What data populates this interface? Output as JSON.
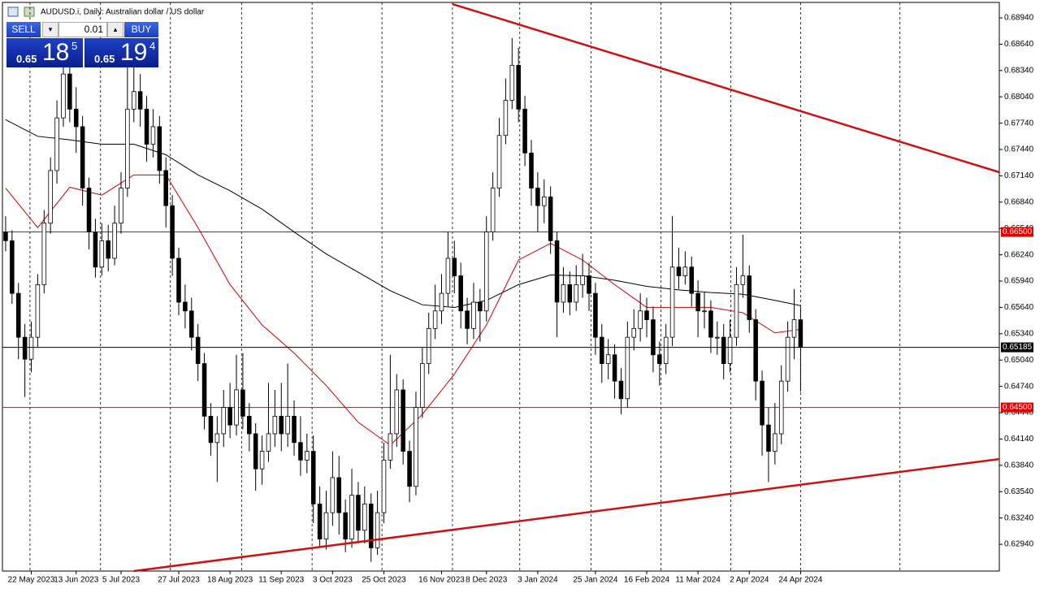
{
  "header": {
    "title": "AUDUSD.i, Daily:  Australian dollar / US dollar"
  },
  "trade_panel": {
    "sell": "SELL",
    "buy": "BUY",
    "lot": "0.01",
    "bid": {
      "prefix": "0.65",
      "pips": "18",
      "point": "5"
    },
    "ask": {
      "prefix": "0.65",
      "pips": "19",
      "point": "4"
    }
  },
  "chart_data": {
    "type": "candlestick",
    "xlim": [
      -0.5,
      155
    ],
    "ylim": [
      0.62635,
      0.69116
    ],
    "up_color": "#ffffff",
    "down_color": "#000000",
    "xticks": [
      {
        "value": 4,
        "label": "22 May 2023"
      },
      {
        "value": 11,
        "label": "13 Jun 2023"
      },
      {
        "value": 18,
        "label": "5 Jul 2023"
      },
      {
        "value": 27,
        "label": "27 Jul 2023"
      },
      {
        "value": 35,
        "label": "18 Aug 2023"
      },
      {
        "value": 43,
        "label": "11 Sep 2023"
      },
      {
        "value": 51,
        "label": "3 Oct 2023"
      },
      {
        "value": 59,
        "label": "25 Oct 2023"
      },
      {
        "value": 68,
        "label": "16 Nov 2023"
      },
      {
        "value": 75,
        "label": "8 Dec 2023"
      },
      {
        "value": 83,
        "label": "3 Jan 2024"
      },
      {
        "value": 92,
        "label": "25 Jan 2024"
      },
      {
        "value": 100,
        "label": "16 Feb 2024"
      },
      {
        "value": 108,
        "label": "11 Mar 2024"
      },
      {
        "value": 116,
        "label": "2 Apr 2024"
      },
      {
        "value": 124,
        "label": "24 Apr 2024"
      }
    ],
    "xgrid": [
      3.8,
      14.8,
      25.7,
      36.8,
      47.8,
      58.7,
      69.7,
      80.2,
      91.3,
      102.2,
      113.1,
      124.0,
      139.5
    ],
    "yticks": [
      {
        "value": 0.6894,
        "label": "0.68940"
      },
      {
        "value": 0.6864,
        "label": "0.68640"
      },
      {
        "value": 0.6834,
        "label": "0.68340"
      },
      {
        "value": 0.6804,
        "label": "0.68040"
      },
      {
        "value": 0.6774,
        "label": "0.67740"
      },
      {
        "value": 0.6744,
        "label": "0.67440"
      },
      {
        "value": 0.6714,
        "label": "0.67140"
      },
      {
        "value": 0.6684,
        "label": "0.66840"
      },
      {
        "value": 0.6654,
        "label": "0.66540"
      },
      {
        "value": 0.6624,
        "label": "0.66240"
      },
      {
        "value": 0.6594,
        "label": "0.65940"
      },
      {
        "value": 0.6564,
        "label": "0.65640"
      },
      {
        "value": 0.6534,
        "label": "0.65340"
      },
      {
        "value": 0.6504,
        "label": "0.65040"
      },
      {
        "value": 0.6474,
        "label": "0.64740"
      },
      {
        "value": 0.6444,
        "label": "0.64440"
      },
      {
        "value": 0.6414,
        "label": "0.64140"
      },
      {
        "value": 0.6384,
        "label": "0.63840"
      },
      {
        "value": 0.6354,
        "label": "0.63540"
      },
      {
        "value": 0.6324,
        "label": "0.63240"
      },
      {
        "value": 0.6294,
        "label": "0.62940"
      }
    ],
    "candles": {
      "open": [
        0.665,
        0.664,
        0.658,
        0.653,
        0.6505,
        0.653,
        0.659,
        0.666,
        0.672,
        0.678,
        0.683,
        0.679,
        0.677,
        0.67,
        0.665,
        0.661,
        0.664,
        0.662,
        0.666,
        0.67,
        0.679,
        0.681,
        0.679,
        0.675,
        0.677,
        0.672,
        0.668,
        0.662,
        0.657,
        0.656,
        0.653,
        0.65,
        0.644,
        0.641,
        0.642,
        0.645,
        0.643,
        0.647,
        0.644,
        0.642,
        0.638,
        0.64,
        0.642,
        0.644,
        0.642,
        0.644,
        0.641,
        0.639,
        0.64,
        0.634,
        0.63,
        0.633,
        0.637,
        0.633,
        0.63,
        0.635,
        0.631,
        0.634,
        0.629,
        0.633,
        0.639,
        0.642,
        0.647,
        0.64,
        0.636,
        0.645,
        0.65,
        0.654,
        0.656,
        0.658,
        0.662,
        0.66,
        0.656,
        0.654,
        0.657,
        0.656,
        0.665,
        0.67,
        0.676,
        0.68,
        0.684,
        0.679,
        0.674,
        0.67,
        0.668,
        0.669,
        0.664,
        0.657,
        0.659,
        0.657,
        0.659,
        0.66,
        0.658,
        0.653,
        0.65,
        0.651,
        0.648,
        0.646,
        0.653,
        0.654,
        0.656,
        0.655,
        0.651,
        0.65,
        0.653,
        0.661,
        0.66,
        0.661,
        0.658,
        0.656,
        0.656,
        0.653,
        0.653,
        0.65,
        0.653,
        0.659,
        0.66,
        0.655,
        0.648,
        0.643,
        0.64,
        0.642,
        0.648,
        0.653,
        0.655
      ],
      "high": [
        0.6668,
        0.6652,
        0.6592,
        0.6545,
        0.6548,
        0.6602,
        0.6675,
        0.6735,
        0.68,
        0.6852,
        0.685,
        0.6815,
        0.6782,
        0.6712,
        0.6665,
        0.666,
        0.6658,
        0.668,
        0.6718,
        0.6852,
        0.685,
        0.683,
        0.6805,
        0.679,
        0.6782,
        0.6735,
        0.6692,
        0.6632,
        0.659,
        0.6575,
        0.6545,
        0.6512,
        0.6455,
        0.644,
        0.647,
        0.6478,
        0.651,
        0.6512,
        0.6455,
        0.6432,
        0.6418,
        0.6478,
        0.647,
        0.6478,
        0.65,
        0.6458,
        0.644,
        0.642,
        0.6418,
        0.636,
        0.6355,
        0.64,
        0.6395,
        0.6345,
        0.638,
        0.6365,
        0.636,
        0.6352,
        0.6355,
        0.641,
        0.651,
        0.6488,
        0.6482,
        0.6412,
        0.6468,
        0.6518,
        0.6558,
        0.659,
        0.6602,
        0.665,
        0.664,
        0.6615,
        0.6575,
        0.6592,
        0.6585,
        0.6668,
        0.6718,
        0.678,
        0.6825,
        0.6871,
        0.686,
        0.6805,
        0.6755,
        0.6718,
        0.671,
        0.6702,
        0.665,
        0.661,
        0.6605,
        0.6612,
        0.6625,
        0.6615,
        0.6592,
        0.6545,
        0.6528,
        0.6522,
        0.6495,
        0.6548,
        0.6562,
        0.658,
        0.6575,
        0.6565,
        0.6525,
        0.6545,
        0.6668,
        0.6632,
        0.6628,
        0.6622,
        0.6595,
        0.6582,
        0.6572,
        0.6548,
        0.6545,
        0.655,
        0.661,
        0.6647,
        0.6612,
        0.6562,
        0.6492,
        0.645,
        0.6455,
        0.6498,
        0.6548,
        0.6585,
        0.6565
      ],
      "low": [
        0.6628,
        0.6568,
        0.6505,
        0.6462,
        0.649,
        0.6518,
        0.658,
        0.6648,
        0.6705,
        0.677,
        0.6775,
        0.674,
        0.668,
        0.663,
        0.6598,
        0.66,
        0.6605,
        0.6612,
        0.6648,
        0.669,
        0.6775,
        0.677,
        0.673,
        0.6735,
        0.6705,
        0.6655,
        0.66,
        0.6555,
        0.654,
        0.6515,
        0.648,
        0.6425,
        0.6395,
        0.6365,
        0.6405,
        0.6415,
        0.6418,
        0.6425,
        0.64,
        0.6355,
        0.6362,
        0.6388,
        0.6405,
        0.64,
        0.6405,
        0.6395,
        0.6372,
        0.6375,
        0.6318,
        0.629,
        0.6288,
        0.6315,
        0.6305,
        0.6285,
        0.629,
        0.6295,
        0.6295,
        0.6274,
        0.6282,
        0.6318,
        0.638,
        0.6405,
        0.6385,
        0.6342,
        0.635,
        0.6438,
        0.6488,
        0.6528,
        0.6545,
        0.6565,
        0.658,
        0.654,
        0.6522,
        0.6528,
        0.6525,
        0.6548,
        0.664,
        0.669,
        0.675,
        0.679,
        0.6775,
        0.6725,
        0.668,
        0.665,
        0.666,
        0.6625,
        0.653,
        0.6558,
        0.6555,
        0.656,
        0.6575,
        0.656,
        0.651,
        0.6478,
        0.6482,
        0.646,
        0.6442,
        0.645,
        0.6515,
        0.6525,
        0.653,
        0.649,
        0.6475,
        0.6488,
        0.652,
        0.6585,
        0.659,
        0.6565,
        0.653,
        0.654,
        0.6512,
        0.651,
        0.6482,
        0.649,
        0.652,
        0.6575,
        0.6535,
        0.6458,
        0.6395,
        0.6365,
        0.6385,
        0.6408,
        0.6468,
        0.6505,
        0.6468
      ],
      "close": [
        0.664,
        0.658,
        0.653,
        0.6505,
        0.653,
        0.659,
        0.666,
        0.672,
        0.678,
        0.683,
        0.679,
        0.677,
        0.67,
        0.665,
        0.661,
        0.664,
        0.662,
        0.666,
        0.67,
        0.679,
        0.681,
        0.679,
        0.675,
        0.677,
        0.672,
        0.668,
        0.662,
        0.657,
        0.656,
        0.653,
        0.65,
        0.644,
        0.641,
        0.642,
        0.645,
        0.643,
        0.647,
        0.644,
        0.642,
        0.638,
        0.64,
        0.642,
        0.644,
        0.642,
        0.644,
        0.641,
        0.639,
        0.64,
        0.634,
        0.63,
        0.633,
        0.637,
        0.633,
        0.63,
        0.635,
        0.631,
        0.634,
        0.629,
        0.633,
        0.639,
        0.642,
        0.647,
        0.64,
        0.636,
        0.645,
        0.65,
        0.654,
        0.656,
        0.658,
        0.662,
        0.66,
        0.656,
        0.654,
        0.657,
        0.656,
        0.665,
        0.67,
        0.676,
        0.68,
        0.684,
        0.679,
        0.674,
        0.67,
        0.668,
        0.669,
        0.664,
        0.657,
        0.659,
        0.657,
        0.659,
        0.66,
        0.658,
        0.653,
        0.65,
        0.651,
        0.648,
        0.646,
        0.653,
        0.654,
        0.656,
        0.655,
        0.651,
        0.65,
        0.653,
        0.661,
        0.66,
        0.661,
        0.658,
        0.656,
        0.656,
        0.653,
        0.653,
        0.65,
        0.653,
        0.659,
        0.66,
        0.655,
        0.648,
        0.643,
        0.64,
        0.642,
        0.648,
        0.653,
        0.655,
        0.65185
      ]
    },
    "series": [
      {
        "color": "#000000",
        "x": [
          0,
          5,
          10,
          15,
          20,
          25,
          30,
          35,
          40,
          45,
          50,
          55,
          60,
          65,
          70,
          75,
          80,
          85,
          90,
          95,
          100,
          105,
          110,
          115,
          120,
          124
        ],
        "values": [
          0.6778,
          0.6759,
          0.6755,
          0.675,
          0.675,
          0.6738,
          0.6715,
          0.6697,
          0.6676,
          0.665,
          0.6625,
          0.6604,
          0.6583,
          0.6567,
          0.6564,
          0.6572,
          0.659,
          0.6601,
          0.66,
          0.6595,
          0.6588,
          0.6584,
          0.6581,
          0.6579,
          0.6572,
          0.6566
        ]
      },
      {
        "color": "#cc0000",
        "x": [
          0,
          5,
          10,
          15,
          20,
          25,
          30,
          35,
          40,
          45,
          50,
          55,
          60,
          65,
          70,
          75,
          80,
          85,
          90,
          95,
          100,
          105,
          110,
          115,
          120,
          124
        ],
        "values": [
          0.67,
          0.6655,
          0.6701,
          0.6692,
          0.6715,
          0.6715,
          0.6655,
          0.659,
          0.6544,
          0.6512,
          0.6475,
          0.6433,
          0.6407,
          0.6442,
          0.6488,
          0.6544,
          0.6618,
          0.6637,
          0.6618,
          0.659,
          0.6564,
          0.6564,
          0.6564,
          0.6558,
          0.6535,
          0.6539
        ]
      }
    ],
    "levels": [
      {
        "value": 0.665,
        "label": "0.66500",
        "color": "#e00000"
      },
      {
        "value": 0.645,
        "label": "0.64500",
        "color": "#e00000"
      }
    ],
    "current_price": {
      "value": 0.65185,
      "label": "0.65185",
      "color": "#000000"
    },
    "trendlines": [
      {
        "color": "#cc1111",
        "points": [
          [
            69.7,
            0.69097
          ],
          [
            155,
            0.67181
          ]
        ]
      },
      {
        "color": "#cc1111",
        "points": [
          [
            20.0,
            0.62635
          ],
          [
            155,
            0.63912
          ]
        ]
      }
    ]
  }
}
